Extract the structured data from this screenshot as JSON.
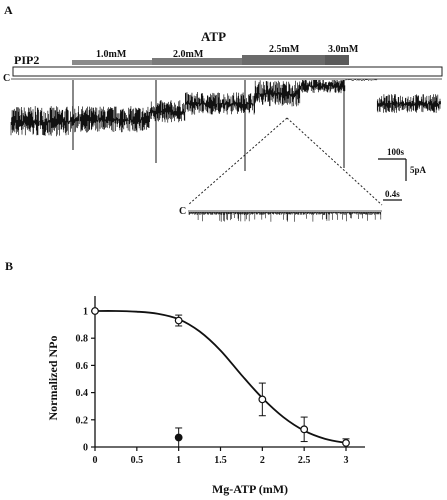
{
  "figure": {
    "panel_a_label": "A",
    "panel_b_label": "B",
    "pip2_label": "PIP2",
    "atp_label": "ATP",
    "concentration_labels": [
      "1.0mM",
      "2.0mM",
      "2.5mM",
      "3.0mM"
    ],
    "closed_label": "C",
    "inset_closed_label": "C",
    "scale_time": "100s",
    "scale_current": "5pA",
    "inset_scale_time": "0.4s"
  },
  "chart_data": {
    "type": "scatter",
    "xlabel": "Mg-ATP (mM)",
    "ylabel": "Normalized NPo",
    "xlim": [
      0,
      3.5
    ],
    "ylim": [
      0,
      1.1
    ],
    "x_ticks": [
      0,
      0.5,
      1,
      1.5,
      2,
      2.5,
      3
    ],
    "x_tick_labels": [
      "0",
      "0.5",
      "1",
      "1.5",
      "2",
      "2.5",
      "3"
    ],
    "y_ticks": [
      0,
      0.2,
      0.4,
      0.6,
      0.8,
      1.0
    ],
    "y_tick_labels": [
      "0",
      "0.2",
      "0.4",
      "0.6",
      "0.8",
      "1"
    ],
    "grid": false,
    "series": [
      {
        "marker": "open-circle",
        "x": [
          0,
          1,
          2,
          2.5,
          3
        ],
        "y": [
          1.0,
          0.93,
          0.35,
          0.13,
          0.03
        ],
        "error": [
          0,
          0.04,
          0.12,
          0.09,
          0.03
        ]
      },
      {
        "marker": "filled-circle",
        "x": [
          1
        ],
        "y": [
          0.07
        ],
        "error": [
          0.07
        ]
      }
    ],
    "fit_curve": {
      "x": [
        0,
        0.25,
        0.5,
        0.75,
        1,
        1.25,
        1.5,
        1.75,
        2,
        2.25,
        2.5,
        2.75,
        3
      ],
      "y": [
        1.0,
        1.0,
        0.995,
        0.98,
        0.94,
        0.85,
        0.71,
        0.53,
        0.36,
        0.22,
        0.12,
        0.06,
        0.03
      ]
    }
  }
}
